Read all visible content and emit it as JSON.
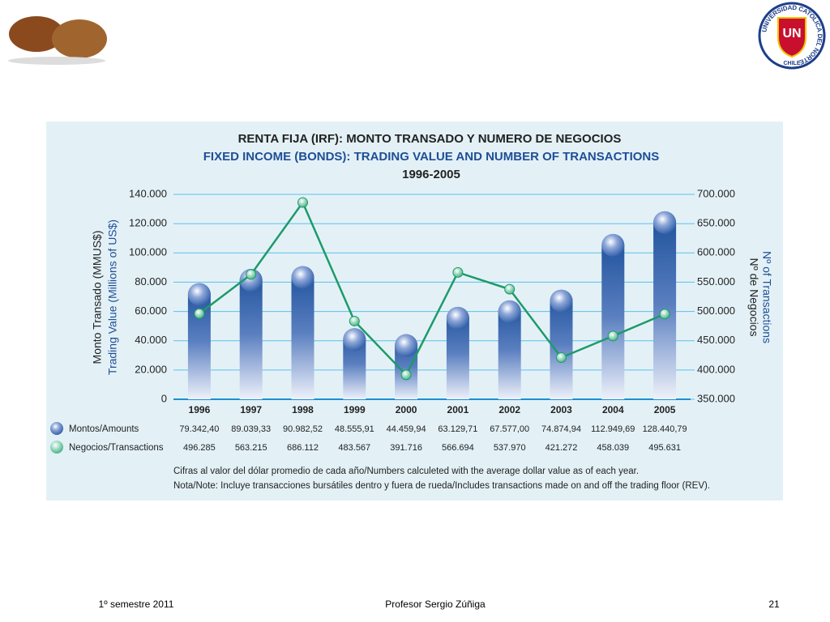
{
  "chart_data": {
    "type": "bar-line",
    "title": "RENTA FIJA (IRF): MONTO TRANSADO Y NUMERO DE NEGOCIOS",
    "subtitle": "FIXED INCOME (BONDS): TRADING VALUE AND NUMBER OF TRANSACTIONS",
    "period": "1996-2005",
    "y_label": "Monto Transado (MMUS$)",
    "y_label_en": "Trading Value (Millions of US$)",
    "y2_label": "Nº de Negocios",
    "y2_label_en": "Nº of Transactions",
    "categories": [
      "1996",
      "1997",
      "1998",
      "1999",
      "2000",
      "2001",
      "2002",
      "2003",
      "2004",
      "2005"
    ],
    "series": [
      {
        "name": "Montos/Amounts",
        "color": "#1f4e96",
        "values": [
          79342.4,
          89039.33,
          90982.52,
          48555.91,
          44459.94,
          63129.71,
          67577,
          74874.94,
          112949.69,
          128440.79
        ],
        "value_labels": [
          "79.342,40",
          "89.039,33",
          "90.982,52",
          "48.555,91",
          "44.459,94",
          "63.129,71",
          "67.577,00",
          "74.874,94",
          "112.949,69",
          "128.440,79"
        ]
      },
      {
        "name": "Negocios/Transactions",
        "color": "#1e9a6a",
        "axis": "y2",
        "values": [
          496285,
          563215,
          686112,
          483567,
          391716,
          566694,
          537970,
          421272,
          458039,
          495631
        ],
        "value_labels": [
          "496.285",
          "563.215",
          "686.112",
          "483.567",
          "391.716",
          "566.694",
          "537.970",
          "421.272",
          "458.039",
          "495.631"
        ]
      }
    ],
    "ylim": [
      0,
      140000
    ],
    "yticks": [
      0,
      {
        "value": 20000,
        "label": "20.000"
      },
      {
        "value": 40000,
        "label": "40.000"
      },
      {
        "value": 60000,
        "label": "60.000"
      },
      {
        "value": 80000,
        "label": "80.000"
      },
      {
        "value": 100000,
        "label": "100.000"
      },
      {
        "value": 120000,
        "label": "120.000"
      },
      {
        "value": 140000,
        "label": "140.000"
      }
    ],
    "y2lim": [
      350000,
      700000
    ],
    "y2ticks": [
      {
        "value": 350000,
        "label": "350.000"
      },
      {
        "value": 400000,
        "label": "400.000"
      },
      {
        "value": 450000,
        "label": "450.000"
      },
      {
        "value": 500000,
        "label": "500.000"
      },
      {
        "value": 550000,
        "label": "550.000"
      },
      {
        "value": 600000,
        "label": "600.000"
      },
      {
        "value": 650000,
        "label": "650.000"
      },
      {
        "value": 700000,
        "label": "700.000"
      }
    ],
    "grid": true,
    "notes": [
      "Cifras al valor del dólar promedio de cada año/Numbers calculeted with the average dollar value as of each year.",
      "Nota/Note: Incluye transacciones bursátiles dentro y fuera de rueda/Includes transactions made on and off the trading floor (REV)."
    ]
  },
  "logo": {
    "name": "UNIVERSIDAD CATOLICA DEL NORTE",
    "country": "CHILE",
    "letters": "UN"
  },
  "footer": {
    "left": "1º semestre 2011",
    "center": "Profesor Sergio Zúñiga",
    "right": "21"
  }
}
